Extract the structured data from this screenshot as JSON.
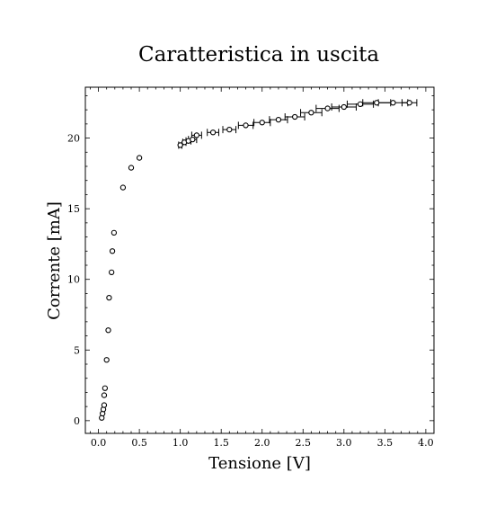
{
  "chart_data": {
    "type": "scatter",
    "title": "Caratteristica in uscita",
    "xlabel": "Tensione [V]",
    "ylabel": "Corrente [mA]",
    "xlim": [
      -0.16,
      4.1
    ],
    "ylim": [
      -0.9,
      23.6
    ],
    "xticks": [
      "0.0",
      "0.5",
      "1.0",
      "1.5",
      "2.0",
      "2.5",
      "3.0",
      "3.5",
      "4.0"
    ],
    "yticks": [
      "0",
      "5",
      "10",
      "15",
      "20"
    ],
    "grid": false,
    "legend": "none",
    "marker": "open-circle",
    "marker_color": "#000000",
    "error_bars": "x",
    "series": [
      {
        "points": [
          {
            "x": 0.04,
            "y": 0.2,
            "xerr": 0
          },
          {
            "x": 0.05,
            "y": 0.5,
            "xerr": 0
          },
          {
            "x": 0.06,
            "y": 0.8,
            "xerr": 0
          },
          {
            "x": 0.07,
            "y": 1.1,
            "xerr": 0
          },
          {
            "x": 0.07,
            "y": 1.8,
            "xerr": 0
          },
          {
            "x": 0.08,
            "y": 2.3,
            "xerr": 0
          },
          {
            "x": 0.1,
            "y": 4.3,
            "xerr": 0
          },
          {
            "x": 0.12,
            "y": 6.4,
            "xerr": 0
          },
          {
            "x": 0.13,
            "y": 8.7,
            "xerr": 0
          },
          {
            "x": 0.16,
            "y": 10.5,
            "xerr": 0
          },
          {
            "x": 0.17,
            "y": 12.0,
            "xerr": 0
          },
          {
            "x": 0.19,
            "y": 13.3,
            "xerr": 0
          },
          {
            "x": 0.3,
            "y": 16.5,
            "xerr": 0
          },
          {
            "x": 0.4,
            "y": 17.9,
            "xerr": 0
          },
          {
            "x": 0.5,
            "y": 18.6,
            "xerr": 0
          },
          {
            "x": 1.0,
            "y": 19.5,
            "xerr": 0.02
          },
          {
            "x": 1.05,
            "y": 19.7,
            "xerr": 0.02
          },
          {
            "x": 1.1,
            "y": 19.8,
            "xerr": 0.03
          },
          {
            "x": 1.15,
            "y": 19.9,
            "xerr": 0.05
          },
          {
            "x": 1.2,
            "y": 20.2,
            "xerr": 0.06
          },
          {
            "x": 1.4,
            "y": 20.4,
            "xerr": 0.07
          },
          {
            "x": 1.6,
            "y": 20.6,
            "xerr": 0.08
          },
          {
            "x": 1.8,
            "y": 20.9,
            "xerr": 0.09
          },
          {
            "x": 2.0,
            "y": 21.1,
            "xerr": 0.1
          },
          {
            "x": 2.2,
            "y": 21.3,
            "xerr": 0.11
          },
          {
            "x": 2.4,
            "y": 21.5,
            "xerr": 0.12
          },
          {
            "x": 2.6,
            "y": 21.8,
            "xerr": 0.13
          },
          {
            "x": 2.8,
            "y": 22.1,
            "xerr": 0.14
          },
          {
            "x": 3.0,
            "y": 22.2,
            "xerr": 0.15
          },
          {
            "x": 3.2,
            "y": 22.4,
            "xerr": 0.16
          },
          {
            "x": 3.4,
            "y": 22.5,
            "xerr": 0.17
          },
          {
            "x": 3.6,
            "y": 22.5,
            "xerr": 0.18
          },
          {
            "x": 3.8,
            "y": 22.5,
            "xerr": 0.09
          }
        ]
      }
    ]
  }
}
